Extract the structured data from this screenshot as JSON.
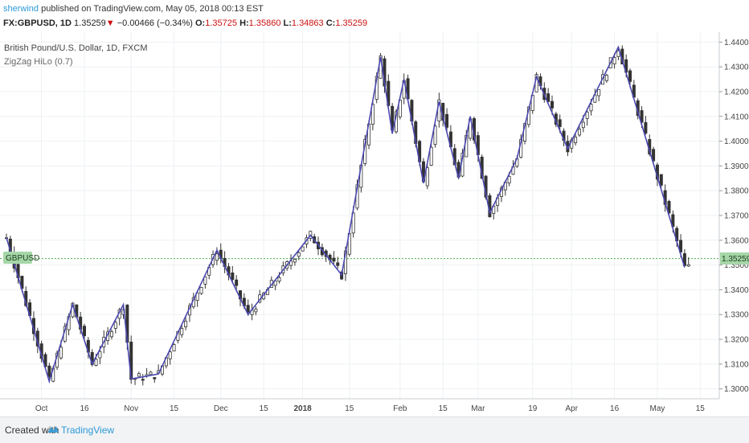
{
  "header": {
    "author": "sherwind",
    "published": "published on TradingView.com, May 05, 2018 00:13 EST",
    "symbol": "FX:GBPUSD, 1D",
    "last": "1.35259",
    "change": "−0.00466 (−0.34%)",
    "open_label": "O:",
    "open": "1.35725",
    "high_label": "H:",
    "high": "1.35860",
    "low_label": "L:",
    "low": "1.34863",
    "close_label": "C:",
    "close": "1.35259"
  },
  "legend": {
    "title": "British Pound/U.S. Dollar, 1D, FXCM",
    "indicator": "ZigZag HiLo (0.7)"
  },
  "price_tag": {
    "symbol": "GBPUSD",
    "value": "1.35259"
  },
  "footer": {
    "created_with": "Created with",
    "brand": "TradingView"
  },
  "colors": {
    "zigzag": "#4b48b0",
    "candle": "#333333",
    "last_line": "#4caf50",
    "grid": "#eef0f3"
  },
  "chart_data": {
    "type": "candlestick",
    "series_name": "GBPUSD",
    "y_ticks": [
      1.3,
      1.31,
      1.32,
      1.33,
      1.34,
      1.35,
      1.36,
      1.37,
      1.38,
      1.39,
      1.4,
      1.41,
      1.42,
      1.43,
      1.44
    ],
    "y_tick_labels": [
      "1.30000",
      "1.31000",
      "1.32000",
      "1.33000",
      "1.34000",
      "1.35000",
      "1.36000",
      "1.37000",
      "1.38000",
      "1.39000",
      "1.40000",
      "1.41000",
      "1.42000",
      "1.43000",
      "1.44000"
    ],
    "ylim": [
      1.296,
      1.444
    ],
    "x_ticks": [
      {
        "label": "Oct",
        "bar": 9,
        "bold": false
      },
      {
        "label": "16",
        "bar": 20,
        "bold": false
      },
      {
        "label": "Nov",
        "bar": 32,
        "bold": false
      },
      {
        "label": "15",
        "bar": 43,
        "bold": false
      },
      {
        "label": "Dec",
        "bar": 55,
        "bold": false
      },
      {
        "label": "15",
        "bar": 66,
        "bold": false
      },
      {
        "label": "2018",
        "bar": 76,
        "bold": true
      },
      {
        "label": "15",
        "bar": 88,
        "bold": false
      },
      {
        "label": "Feb",
        "bar": 101,
        "bold": false
      },
      {
        "label": "15",
        "bar": 112,
        "bold": false
      },
      {
        "label": "Mar",
        "bar": 121,
        "bold": false
      },
      {
        "label": "19",
        "bar": 135,
        "bold": false
      },
      {
        "label": "Apr",
        "bar": 145,
        "bold": false
      },
      {
        "label": "16",
        "bar": 156,
        "bold": false
      },
      {
        "label": "May",
        "bar": 167,
        "bold": false
      },
      {
        "label": "15",
        "bar": 178,
        "bold": false
      }
    ],
    "bars": 176,
    "last_price": 1.35259,
    "zigzag_pivots": [
      [
        0,
        1.361
      ],
      [
        11,
        1.303
      ],
      [
        17,
        1.334
      ],
      [
        22,
        1.31
      ],
      [
        30,
        1.334
      ],
      [
        32,
        1.304
      ],
      [
        39,
        1.306
      ],
      [
        54,
        1.356
      ],
      [
        62,
        1.33
      ],
      [
        78,
        1.362
      ],
      [
        86,
        1.346
      ],
      [
        96,
        1.434
      ],
      [
        99,
        1.403
      ],
      [
        102,
        1.425
      ],
      [
        107,
        1.383
      ],
      [
        111,
        1.416
      ],
      [
        116,
        1.385
      ],
      [
        119,
        1.41
      ],
      [
        124,
        1.371
      ],
      [
        131,
        1.393
      ],
      [
        136,
        1.426
      ],
      [
        144,
        1.397
      ],
      [
        157,
        1.438
      ],
      [
        174,
        1.349
      ]
    ]
  }
}
